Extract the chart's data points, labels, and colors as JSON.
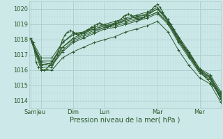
{
  "xlabel": "Pression niveau de la mer( hPa )",
  "bg_color": "#cce8e8",
  "grid_major_color": "#aacccc",
  "grid_minor_color": "#bbdddd",
  "line_color": "#2d5a2d",
  "ylim": [
    1013.5,
    1020.5
  ],
  "yticks": [
    1014,
    1015,
    1016,
    1017,
    1018,
    1019,
    1020
  ],
  "day_labels": [
    "Sam",
    "Jeu",
    "Dim",
    "Lun",
    "Mar",
    "Mer"
  ],
  "day_positions": [
    0,
    12,
    48,
    84,
    144,
    192
  ],
  "xlim": [
    -2,
    216
  ],
  "curves": [
    [
      0,
      1018.0,
      3,
      1017.8,
      6,
      1016.5,
      9,
      1016.2,
      12,
      1016.1,
      15,
      1016.0,
      18,
      1016.1,
      21,
      1016.3,
      24,
      1016.5,
      27,
      1016.8,
      30,
      1017.0,
      33,
      1017.5,
      36,
      1018.0,
      39,
      1018.3,
      42,
      1018.5,
      45,
      1018.6,
      48,
      1018.5,
      51,
      1018.4,
      54,
      1018.3,
      57,
      1018.4,
      60,
      1018.5,
      63,
      1018.6,
      66,
      1018.7,
      69,
      1018.8,
      72,
      1018.9,
      75,
      1019.0,
      78,
      1019.1,
      81,
      1019.0,
      84,
      1018.9,
      87,
      1018.8,
      90,
      1018.9,
      93,
      1019.0,
      96,
      1019.1,
      99,
      1019.2,
      102,
      1019.3,
      105,
      1019.5,
      108,
      1019.6,
      111,
      1019.7,
      114,
      1019.6,
      117,
      1019.5,
      120,
      1019.4,
      123,
      1019.3,
      126,
      1019.4,
      129,
      1019.5,
      132,
      1019.6,
      135,
      1019.8,
      138,
      1020.0,
      141,
      1020.2,
      144,
      1020.3,
      147,
      1020.1,
      150,
      1019.8,
      153,
      1019.5,
      156,
      1019.2,
      159,
      1019.0,
      162,
      1018.7,
      165,
      1018.4,
      168,
      1018.1,
      171,
      1017.8,
      174,
      1017.5,
      177,
      1017.3,
      180,
      1017.1,
      183,
      1016.8,
      186,
      1016.5,
      189,
      1016.2,
      192,
      1016.0,
      195,
      1015.8,
      198,
      1015.6,
      201,
      1015.4,
      204,
      1015.2,
      207,
      1015.0,
      210,
      1014.8,
      213,
      1014.5,
      216,
      1014.2
    ],
    [
      0,
      1018.0,
      12,
      1016.3,
      24,
      1016.5,
      36,
      1017.8,
      48,
      1018.4,
      60,
      1018.5,
      72,
      1018.7,
      84,
      1018.9,
      96,
      1019.0,
      108,
      1019.3,
      120,
      1019.5,
      132,
      1019.6,
      144,
      1020.0,
      156,
      1019.3,
      168,
      1018.2,
      180,
      1017.2,
      192,
      1016.1,
      204,
      1015.5,
      216,
      1014.5
    ],
    [
      0,
      1018.0,
      12,
      1016.2,
      24,
      1016.2,
      36,
      1017.5,
      48,
      1018.0,
      60,
      1018.3,
      72,
      1018.6,
      84,
      1018.8,
      96,
      1019.0,
      108,
      1019.2,
      120,
      1019.4,
      132,
      1019.5,
      144,
      1019.8,
      156,
      1019.1,
      168,
      1018.0,
      180,
      1017.0,
      192,
      1015.9,
      204,
      1015.5,
      216,
      1014.3
    ],
    [
      0,
      1018.0,
      12,
      1016.4,
      24,
      1016.3,
      36,
      1017.2,
      48,
      1017.8,
      60,
      1018.1,
      72,
      1018.4,
      84,
      1018.7,
      96,
      1018.8,
      108,
      1019.0,
      120,
      1019.2,
      132,
      1019.4,
      144,
      1019.7,
      156,
      1019.0,
      168,
      1017.8,
      180,
      1016.8,
      192,
      1015.8,
      204,
      1015.4,
      216,
      1014.1
    ],
    [
      0,
      1018.0,
      12,
      1016.5,
      24,
      1016.4,
      36,
      1017.3,
      48,
      1017.9,
      60,
      1018.2,
      72,
      1018.5,
      84,
      1018.8,
      96,
      1018.9,
      108,
      1019.1,
      120,
      1019.3,
      132,
      1019.5,
      144,
      1019.8,
      156,
      1019.1,
      168,
      1017.9,
      180,
      1016.9,
      192,
      1015.9,
      204,
      1015.5,
      216,
      1014.2
    ],
    [
      0,
      1018.0,
      12,
      1016.6,
      24,
      1016.6,
      36,
      1017.5,
      48,
      1018.1,
      60,
      1018.4,
      72,
      1018.7,
      84,
      1018.9,
      96,
      1019.1,
      108,
      1019.3,
      120,
      1019.5,
      132,
      1019.7,
      144,
      1020.0,
      156,
      1019.2,
      168,
      1018.0,
      180,
      1017.0,
      192,
      1016.0,
      204,
      1015.6,
      216,
      1014.4
    ],
    [
      0,
      1018.1,
      12,
      1016.8,
      24,
      1016.8,
      36,
      1017.8,
      48,
      1018.3,
      60,
      1018.5,
      72,
      1018.8,
      84,
      1019.0,
      96,
      1019.2,
      108,
      1019.4,
      120,
      1019.6,
      132,
      1019.8,
      144,
      1020.1,
      156,
      1019.3,
      168,
      1018.1,
      180,
      1017.1,
      192,
      1016.1,
      204,
      1015.7,
      216,
      1014.6
    ],
    [
      0,
      1018.0,
      12,
      1016.0,
      24,
      1016.0,
      36,
      1016.8,
      48,
      1017.2,
      60,
      1017.5,
      72,
      1017.8,
      84,
      1018.0,
      96,
      1018.2,
      108,
      1018.5,
      120,
      1018.7,
      132,
      1018.9,
      144,
      1019.2,
      156,
      1018.5,
      168,
      1017.3,
      180,
      1016.3,
      192,
      1015.5,
      204,
      1015.1,
      216,
      1013.9
    ]
  ]
}
